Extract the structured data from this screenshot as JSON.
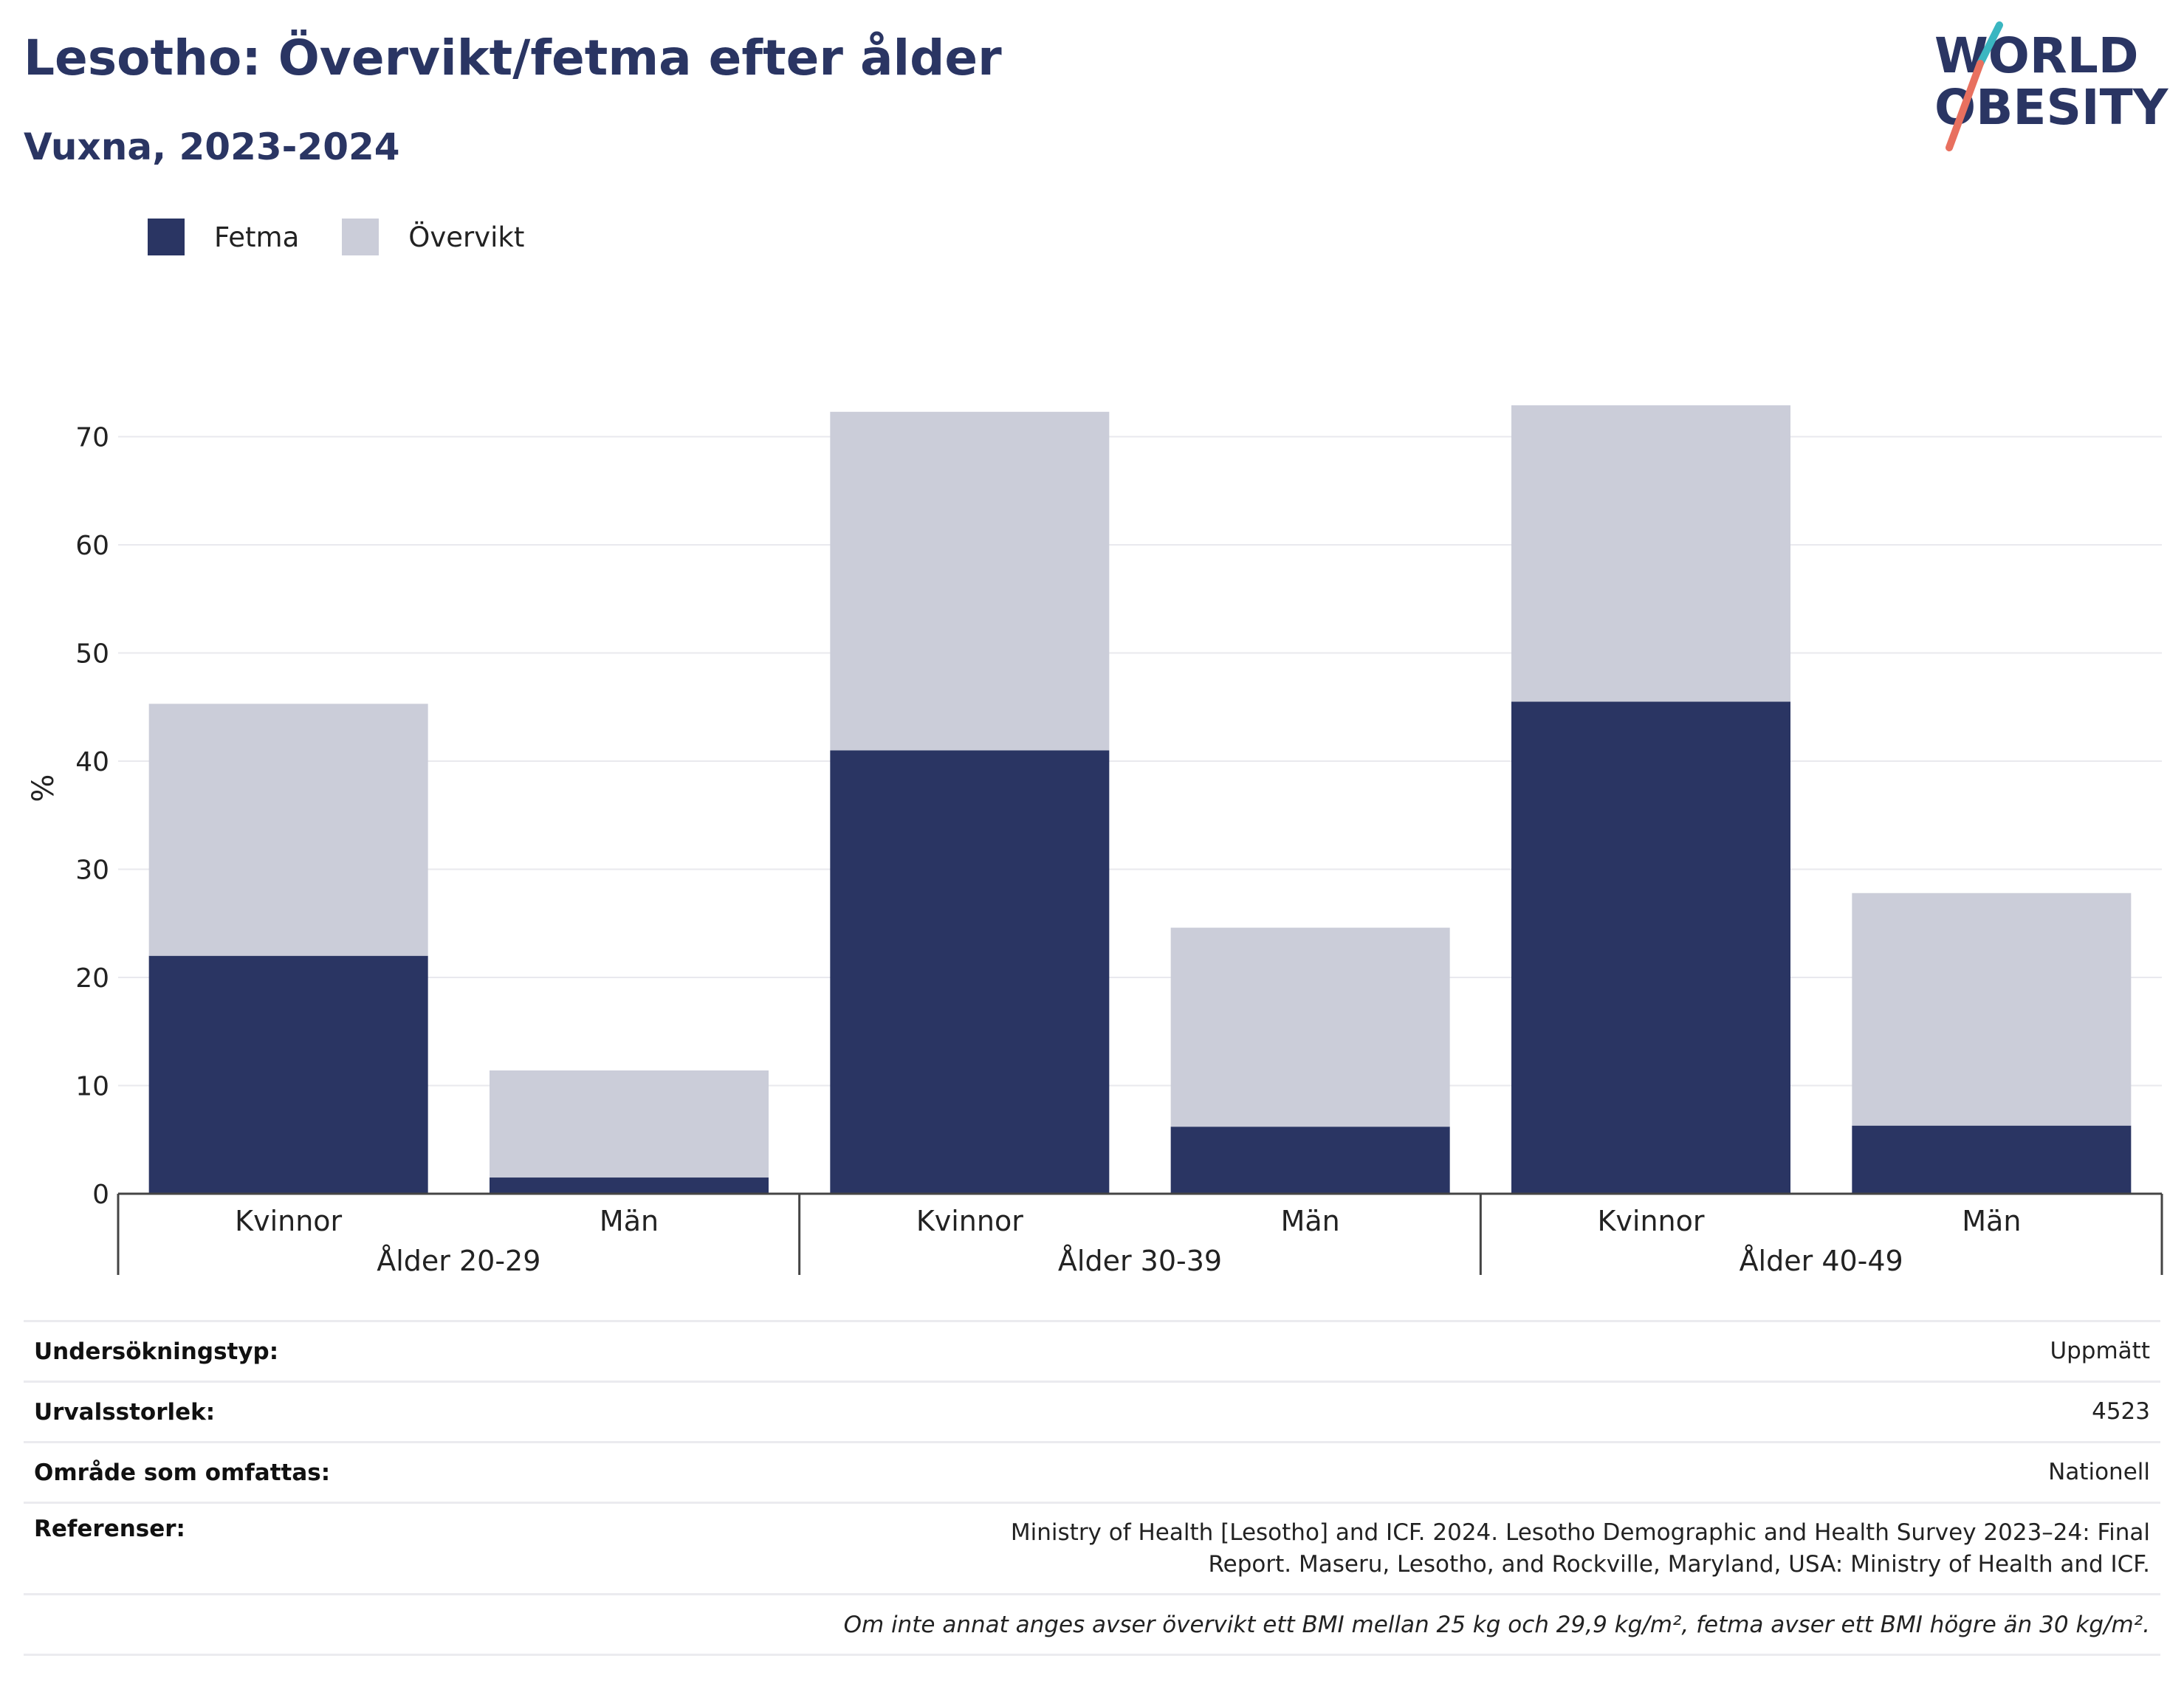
{
  "header": {
    "title": "Lesotho: Övervikt/fetma efter ålder",
    "subtitle": "Vuxna, 2023-2024"
  },
  "logo": {
    "line1": "WORLD",
    "line2": "OBESITY",
    "accent_colors": [
      "#3ab6c1",
      "#e8705f"
    ]
  },
  "legend": [
    {
      "label": "Fetma",
      "color": "#2a3563"
    },
    {
      "label": "Övervikt",
      "color": "#cbcdd9"
    }
  ],
  "chart_data": {
    "type": "bar",
    "stacked": true,
    "ylabel": "%",
    "ylim": [
      0,
      75
    ],
    "yticks": [
      0,
      10,
      20,
      30,
      40,
      50,
      60,
      70
    ],
    "grid": true,
    "legend_position": "top-left",
    "groups": [
      {
        "label": "Ålder 20-29",
        "categories": [
          "Kvinnor",
          "Män"
        ]
      },
      {
        "label": "Ålder 30-39",
        "categories": [
          "Kvinnor",
          "Män"
        ]
      },
      {
        "label": "Ålder 40-49",
        "categories": [
          "Kvinnor",
          "Män"
        ]
      }
    ],
    "series": [
      {
        "name": "Fetma",
        "color": "#2a3563",
        "values": [
          22.0,
          1.5,
          41.0,
          6.2,
          45.5,
          6.3
        ]
      },
      {
        "name": "Övervikt",
        "color": "#cbcdd9",
        "values": [
          23.3,
          9.9,
          31.3,
          18.4,
          27.4,
          21.5
        ]
      }
    ]
  },
  "info": {
    "rows": [
      {
        "key": "Undersökningstyp:",
        "value": "Uppmätt"
      },
      {
        "key": "Urvalsstorlek:",
        "value": "4523"
      },
      {
        "key": "Område som omfattas:",
        "value": "Nationell"
      },
      {
        "key": "Referenser:",
        "value": "Ministry of Health [Lesotho] and ICF. 2024. Lesotho Demographic and Health Survey 2023–24: Final Report. Maseru, Lesotho, and Rockville, Maryland, USA: Ministry of Health and ICF."
      }
    ],
    "note": "Om inte annat anges avser övervikt ett BMI mellan 25 kg och 29,9 kg/m², fetma avser ett BMI högre än 30 kg/m²."
  }
}
